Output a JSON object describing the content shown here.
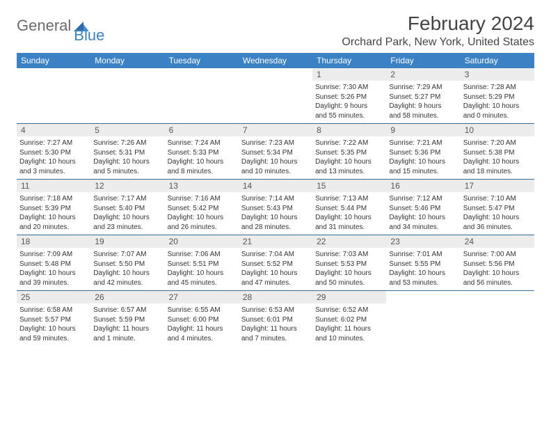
{
  "logo": {
    "word1": "General",
    "word2": "Blue"
  },
  "title": {
    "month_year": "February 2024",
    "location": "Orchard Park, New York, United States"
  },
  "weekdays": [
    "Sunday",
    "Monday",
    "Tuesday",
    "Wednesday",
    "Thursday",
    "Friday",
    "Saturday"
  ],
  "colors": {
    "header_bg": "#3b82c4",
    "header_text": "#ffffff",
    "daynum_bg": "#ececec",
    "row_border": "#3b6a94",
    "body_text": "#333333"
  },
  "weeks": [
    [
      null,
      null,
      null,
      null,
      {
        "n": "1",
        "sr": "Sunrise: 7:30 AM",
        "ss": "Sunset: 5:26 PM",
        "d1": "Daylight: 9 hours",
        "d2": "and 55 minutes."
      },
      {
        "n": "2",
        "sr": "Sunrise: 7:29 AM",
        "ss": "Sunset: 5:27 PM",
        "d1": "Daylight: 9 hours",
        "d2": "and 58 minutes."
      },
      {
        "n": "3",
        "sr": "Sunrise: 7:28 AM",
        "ss": "Sunset: 5:29 PM",
        "d1": "Daylight: 10 hours",
        "d2": "and 0 minutes."
      }
    ],
    [
      {
        "n": "4",
        "sr": "Sunrise: 7:27 AM",
        "ss": "Sunset: 5:30 PM",
        "d1": "Daylight: 10 hours",
        "d2": "and 3 minutes."
      },
      {
        "n": "5",
        "sr": "Sunrise: 7:26 AM",
        "ss": "Sunset: 5:31 PM",
        "d1": "Daylight: 10 hours",
        "d2": "and 5 minutes."
      },
      {
        "n": "6",
        "sr": "Sunrise: 7:24 AM",
        "ss": "Sunset: 5:33 PM",
        "d1": "Daylight: 10 hours",
        "d2": "and 8 minutes."
      },
      {
        "n": "7",
        "sr": "Sunrise: 7:23 AM",
        "ss": "Sunset: 5:34 PM",
        "d1": "Daylight: 10 hours",
        "d2": "and 10 minutes."
      },
      {
        "n": "8",
        "sr": "Sunrise: 7:22 AM",
        "ss": "Sunset: 5:35 PM",
        "d1": "Daylight: 10 hours",
        "d2": "and 13 minutes."
      },
      {
        "n": "9",
        "sr": "Sunrise: 7:21 AM",
        "ss": "Sunset: 5:36 PM",
        "d1": "Daylight: 10 hours",
        "d2": "and 15 minutes."
      },
      {
        "n": "10",
        "sr": "Sunrise: 7:20 AM",
        "ss": "Sunset: 5:38 PM",
        "d1": "Daylight: 10 hours",
        "d2": "and 18 minutes."
      }
    ],
    [
      {
        "n": "11",
        "sr": "Sunrise: 7:18 AM",
        "ss": "Sunset: 5:39 PM",
        "d1": "Daylight: 10 hours",
        "d2": "and 20 minutes."
      },
      {
        "n": "12",
        "sr": "Sunrise: 7:17 AM",
        "ss": "Sunset: 5:40 PM",
        "d1": "Daylight: 10 hours",
        "d2": "and 23 minutes."
      },
      {
        "n": "13",
        "sr": "Sunrise: 7:16 AM",
        "ss": "Sunset: 5:42 PM",
        "d1": "Daylight: 10 hours",
        "d2": "and 26 minutes."
      },
      {
        "n": "14",
        "sr": "Sunrise: 7:14 AM",
        "ss": "Sunset: 5:43 PM",
        "d1": "Daylight: 10 hours",
        "d2": "and 28 minutes."
      },
      {
        "n": "15",
        "sr": "Sunrise: 7:13 AM",
        "ss": "Sunset: 5:44 PM",
        "d1": "Daylight: 10 hours",
        "d2": "and 31 minutes."
      },
      {
        "n": "16",
        "sr": "Sunrise: 7:12 AM",
        "ss": "Sunset: 5:46 PM",
        "d1": "Daylight: 10 hours",
        "d2": "and 34 minutes."
      },
      {
        "n": "17",
        "sr": "Sunrise: 7:10 AM",
        "ss": "Sunset: 5:47 PM",
        "d1": "Daylight: 10 hours",
        "d2": "and 36 minutes."
      }
    ],
    [
      {
        "n": "18",
        "sr": "Sunrise: 7:09 AM",
        "ss": "Sunset: 5:48 PM",
        "d1": "Daylight: 10 hours",
        "d2": "and 39 minutes."
      },
      {
        "n": "19",
        "sr": "Sunrise: 7:07 AM",
        "ss": "Sunset: 5:50 PM",
        "d1": "Daylight: 10 hours",
        "d2": "and 42 minutes."
      },
      {
        "n": "20",
        "sr": "Sunrise: 7:06 AM",
        "ss": "Sunset: 5:51 PM",
        "d1": "Daylight: 10 hours",
        "d2": "and 45 minutes."
      },
      {
        "n": "21",
        "sr": "Sunrise: 7:04 AM",
        "ss": "Sunset: 5:52 PM",
        "d1": "Daylight: 10 hours",
        "d2": "and 47 minutes."
      },
      {
        "n": "22",
        "sr": "Sunrise: 7:03 AM",
        "ss": "Sunset: 5:53 PM",
        "d1": "Daylight: 10 hours",
        "d2": "and 50 minutes."
      },
      {
        "n": "23",
        "sr": "Sunrise: 7:01 AM",
        "ss": "Sunset: 5:55 PM",
        "d1": "Daylight: 10 hours",
        "d2": "and 53 minutes."
      },
      {
        "n": "24",
        "sr": "Sunrise: 7:00 AM",
        "ss": "Sunset: 5:56 PM",
        "d1": "Daylight: 10 hours",
        "d2": "and 56 minutes."
      }
    ],
    [
      {
        "n": "25",
        "sr": "Sunrise: 6:58 AM",
        "ss": "Sunset: 5:57 PM",
        "d1": "Daylight: 10 hours",
        "d2": "and 59 minutes."
      },
      {
        "n": "26",
        "sr": "Sunrise: 6:57 AM",
        "ss": "Sunset: 5:59 PM",
        "d1": "Daylight: 11 hours",
        "d2": "and 1 minute."
      },
      {
        "n": "27",
        "sr": "Sunrise: 6:55 AM",
        "ss": "Sunset: 6:00 PM",
        "d1": "Daylight: 11 hours",
        "d2": "and 4 minutes."
      },
      {
        "n": "28",
        "sr": "Sunrise: 6:53 AM",
        "ss": "Sunset: 6:01 PM",
        "d1": "Daylight: 11 hours",
        "d2": "and 7 minutes."
      },
      {
        "n": "29",
        "sr": "Sunrise: 6:52 AM",
        "ss": "Sunset: 6:02 PM",
        "d1": "Daylight: 11 hours",
        "d2": "and 10 minutes."
      },
      null,
      null
    ]
  ]
}
